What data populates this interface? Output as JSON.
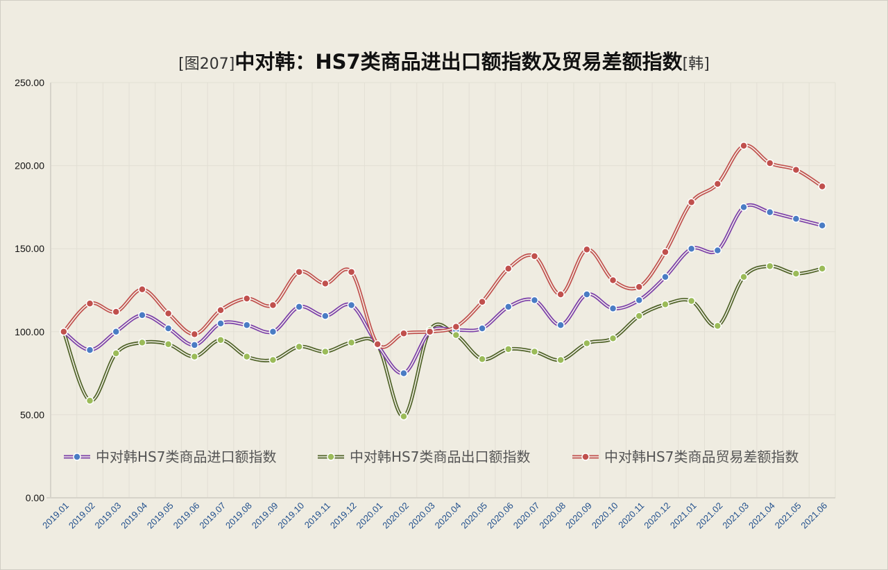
{
  "chart_data": {
    "type": "line",
    "title_prefix": "[图207]",
    "title": "中对韩：HS7类商品进出口额指数及贸易差额指数",
    "title_suffix": "[韩]",
    "xlabel": "",
    "ylabel": "",
    "ylim": [
      0,
      250
    ],
    "yticks": [
      "0.00",
      "50.00",
      "100.00",
      "150.00",
      "200.00",
      "250.00"
    ],
    "grid": true,
    "legend_position": "bottom-inside",
    "categories": [
      "2019.01",
      "2019.02",
      "2019.03",
      "2019.04",
      "2019.05",
      "2019.06",
      "2019.07",
      "2019.08",
      "2019.09",
      "2019.10",
      "2019.11",
      "2019.12",
      "2020.01",
      "2020.02",
      "2020.03",
      "2020.04",
      "2020.05",
      "2020.06",
      "2020.07",
      "2020.08",
      "2020.09",
      "2020.10",
      "2020.11",
      "2020.12",
      "2021.01",
      "2021.02",
      "2021.03",
      "2021.04",
      "2021.05",
      "2021.06"
    ],
    "series": [
      {
        "name": "中对韩HS7类商品进口额指数",
        "color": "#7b3fa8",
        "marker": "#4a7cc4",
        "values": [
          100,
          89,
          100,
          110,
          102,
          92,
          105,
          104,
          100,
          115,
          109.5,
          116,
          92,
          75,
          100,
          101,
          102,
          115,
          119,
          104,
          122.5,
          114,
          119,
          133,
          150,
          149,
          175,
          172,
          168,
          164
        ]
      },
      {
        "name": "中对韩HS7类商品出口额指数",
        "color": "#4f6228",
        "marker": "#9bbb59",
        "values": [
          100,
          58.5,
          87,
          93.5,
          92.5,
          85,
          95,
          85,
          83,
          91,
          88,
          93.5,
          92,
          49,
          101,
          98,
          83.5,
          89.5,
          88,
          83,
          93,
          96,
          109.5,
          116.5,
          118.5,
          103.5,
          133,
          139.5,
          135,
          138
        ]
      },
      {
        "name": "中对韩HS7类商品贸易差额指数",
        "color": "#c0504d",
        "marker": "#c0504d",
        "values": [
          100,
          117,
          112,
          125.5,
          111,
          98.5,
          113,
          120,
          116,
          136,
          129,
          136,
          92.5,
          99,
          100,
          103,
          118,
          138,
          145.5,
          122.5,
          149.5,
          131,
          127,
          148,
          178,
          189,
          212,
          201.5,
          197.5,
          187.5
        ]
      }
    ]
  }
}
